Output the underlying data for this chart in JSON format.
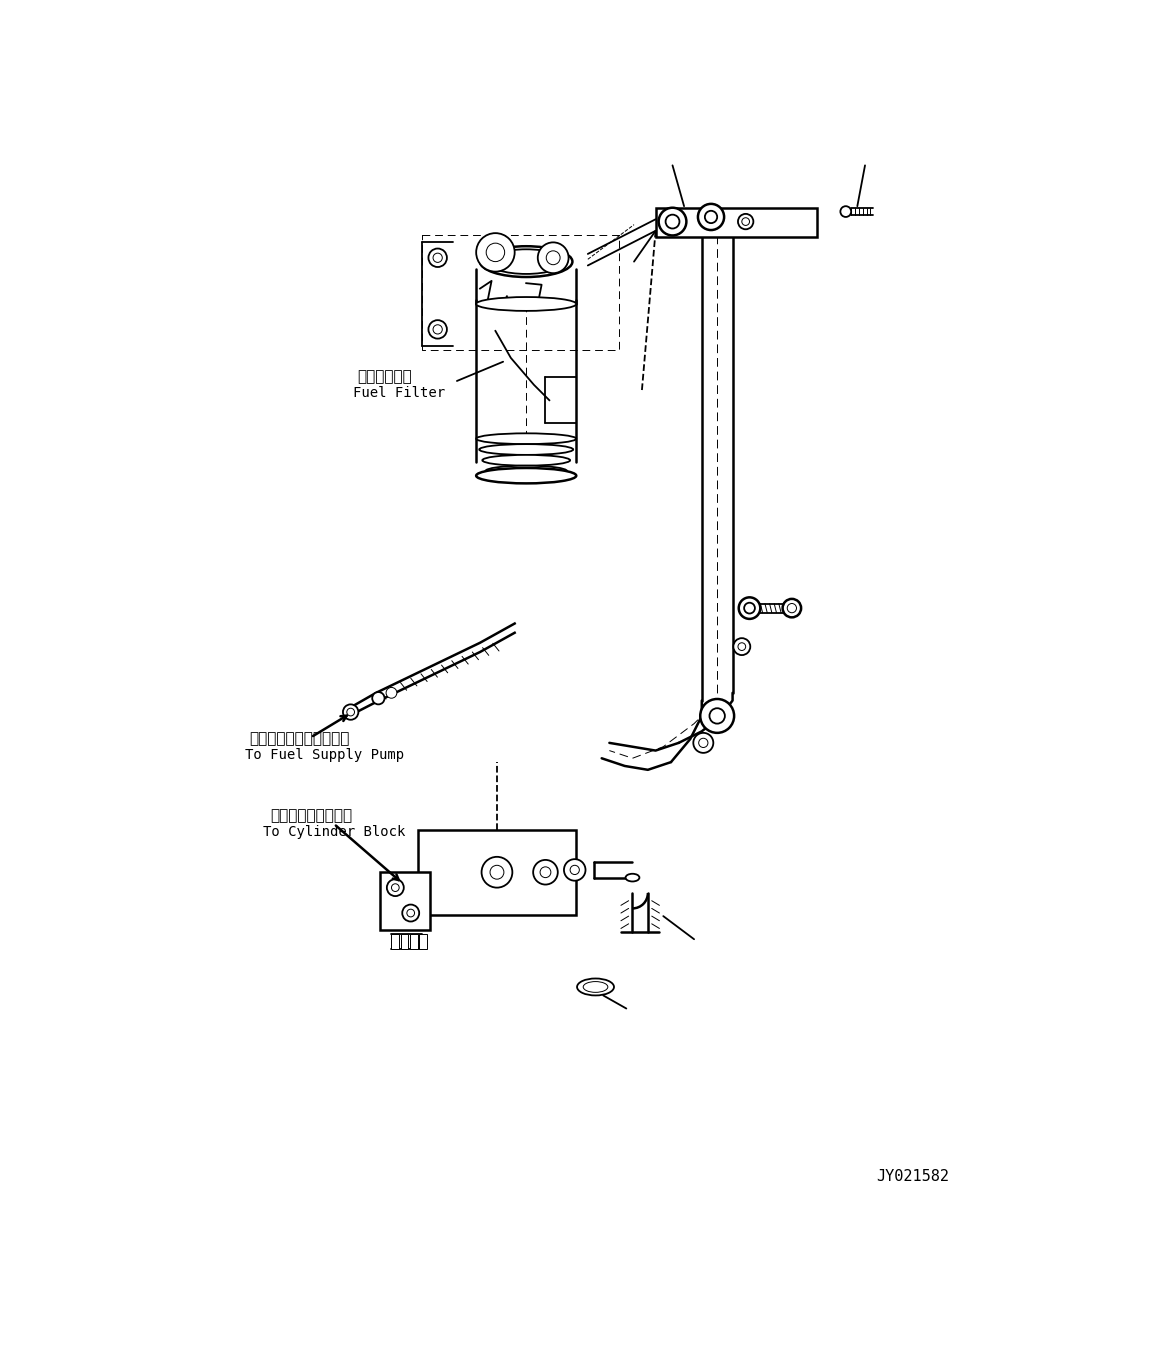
{
  "background_color": "#ffffff",
  "line_color": "#000000",
  "text_color": "#000000",
  "diagram_id": "JY021582",
  "label_fuel_filter_jp": "燃料フィルタ",
  "label_fuel_filter_en": "Fuel Filter",
  "label_fuel_pump_jp": "フェルサプライポンプへ",
  "label_fuel_pump_en": "To Fuel Supply Pump",
  "label_cylinder_jp": "シリンダブロックへ",
  "label_cylinder_en": "To Cylinder Block",
  "fig_width": 11.68,
  "fig_height": 13.46
}
